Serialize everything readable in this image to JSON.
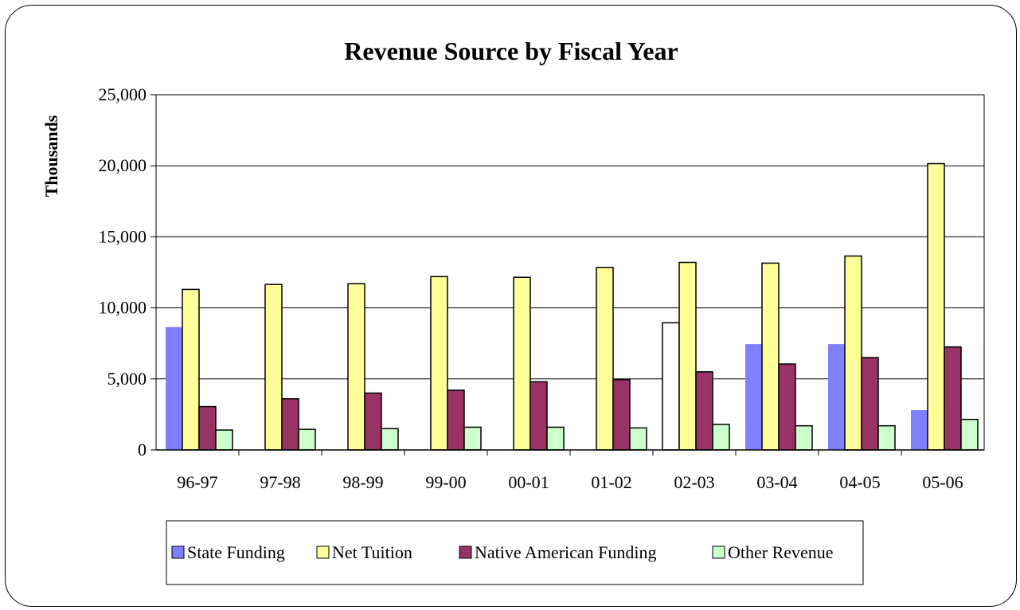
{
  "chart_data": {
    "type": "bar",
    "title": "Revenue Source by Fiscal Year",
    "xlabel": "",
    "ylabel": "Thousands",
    "ylim": [
      0,
      25000
    ],
    "yticks": [
      "0",
      "5,000",
      "10,000",
      "15,000",
      "20,000",
      "25,000"
    ],
    "grid": true,
    "legend_position": "bottom",
    "categories": [
      "96-97",
      "97-98",
      "98-99",
      "99-00",
      "00-01",
      "01-02",
      "02-03",
      "03-04",
      "04-05",
      "05-06"
    ],
    "series": [
      {
        "name": "State Funding",
        "color": "#8080ff",
        "values": [
          8650,
          0,
          0,
          0,
          0,
          0,
          8950,
          7450,
          7450,
          2800
        ]
      },
      {
        "name": "Net Tuition",
        "color": "#ffff99",
        "values": [
          11300,
          11650,
          11700,
          12200,
          12150,
          12850,
          13200,
          13150,
          13650,
          20150
        ]
      },
      {
        "name": "Native American Funding",
        "color": "#993366",
        "values": [
          3050,
          3600,
          4000,
          4200,
          4800,
          4950,
          5500,
          6050,
          6500,
          7250
        ]
      },
      {
        "name": "Other Revenue",
        "color": "#ccffcc",
        "values": [
          1400,
          1450,
          1500,
          1600,
          1600,
          1550,
          1800,
          1700,
          1700,
          2150
        ]
      }
    ],
    "bar_fill_overrides": [
      {
        "series": 0,
        "index": 6,
        "color": "#ffffff"
      }
    ]
  }
}
